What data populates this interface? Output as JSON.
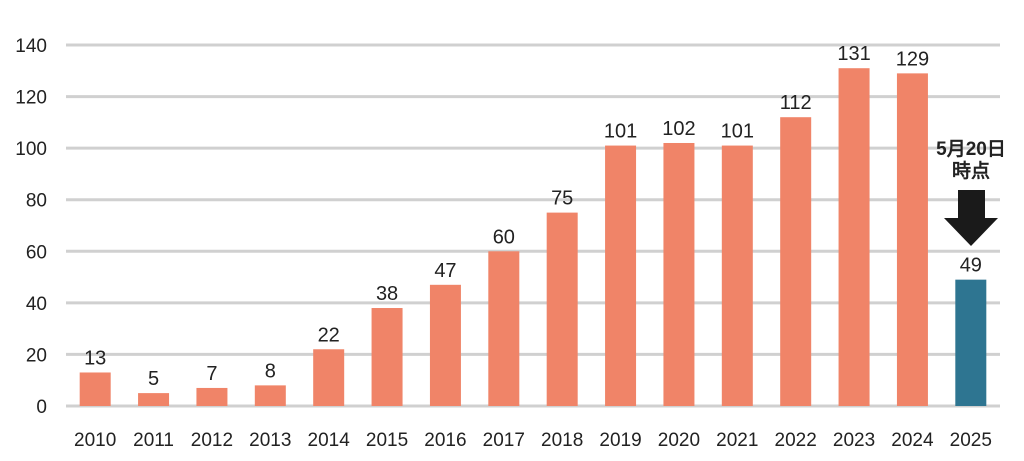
{
  "chart_data": {
    "type": "bar",
    "categories": [
      "2010",
      "2011",
      "2012",
      "2013",
      "2014",
      "2015",
      "2016",
      "2017",
      "2018",
      "2019",
      "2020",
      "2021",
      "2022",
      "2023",
      "2024",
      "2025"
    ],
    "values": [
      13,
      5,
      7,
      8,
      22,
      38,
      47,
      60,
      75,
      101,
      102,
      101,
      112,
      131,
      129,
      49
    ],
    "ylim": [
      0,
      140
    ],
    "yticks": [
      0,
      20,
      40,
      60,
      80,
      100,
      120,
      140
    ],
    "grid": true,
    "colors": {
      "bar": "#F08468",
      "highlight": "#2E7591",
      "grid": "#D0D0D0",
      "arrow": "#1A1A1A"
    },
    "highlight_category": "2025",
    "annotation": {
      "line1": "5月20日",
      "line2": "時点",
      "icon": "down-arrow-icon"
    }
  }
}
